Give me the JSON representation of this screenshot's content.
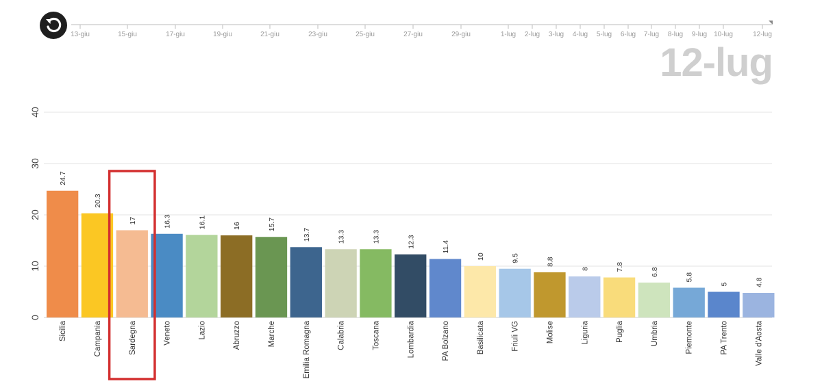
{
  "big_date": "12-lug",
  "timeline": {
    "ticks": [
      "13-giu",
      "15-giu",
      "17-giu",
      "19-giu",
      "21-giu",
      "23-giu",
      "25-giu",
      "27-giu",
      "29-giu",
      "1-lug",
      "2-lug",
      "3-lug",
      "4-lug",
      "5-lug",
      "6-lug",
      "7-lug",
      "8-lug",
      "9-lug",
      "10-lug",
      "12-lug"
    ]
  },
  "highlight": {
    "category": "Sardegna",
    "color": "#d32f2f"
  },
  "chart_data": {
    "type": "bar",
    "ylim": [
      0,
      40
    ],
    "yticks": [
      0,
      10,
      20,
      30,
      40
    ],
    "grid": true,
    "categories": [
      "Sicilia",
      "Campania",
      "Sardegna",
      "Veneto",
      "Lazio",
      "Abruzzo",
      "Marche",
      "Emilia Romagna",
      "Calabria",
      "Toscana",
      "Lombardia",
      "PA Bolzano",
      "Basilicata",
      "Friuli VG",
      "Molise",
      "Liguria",
      "Puglia",
      "Umbria",
      "Piemonte",
      "PA Trento",
      "Valle d'Aosta"
    ],
    "values": [
      24.7,
      20.3,
      17,
      16.3,
      16.1,
      16,
      15.7,
      13.7,
      13.3,
      13.3,
      12.3,
      11.4,
      10,
      9.5,
      8.8,
      8,
      7.8,
      6.8,
      5.8,
      5,
      4.8
    ],
    "colors": [
      "#ef8c4a",
      "#fbc723",
      "#f5bb92",
      "#4a8bc4",
      "#b3d59b",
      "#8c6d25",
      "#6a9652",
      "#3d658e",
      "#cdd4b5",
      "#85ba62",
      "#324c65",
      "#6088cc",
      "#fde8a9",
      "#a6c7e8",
      "#c0982e",
      "#bacbea",
      "#f9dc7b",
      "#cee4bd",
      "#76a8d7",
      "#5a86cc",
      "#9bb4e0"
    ]
  }
}
